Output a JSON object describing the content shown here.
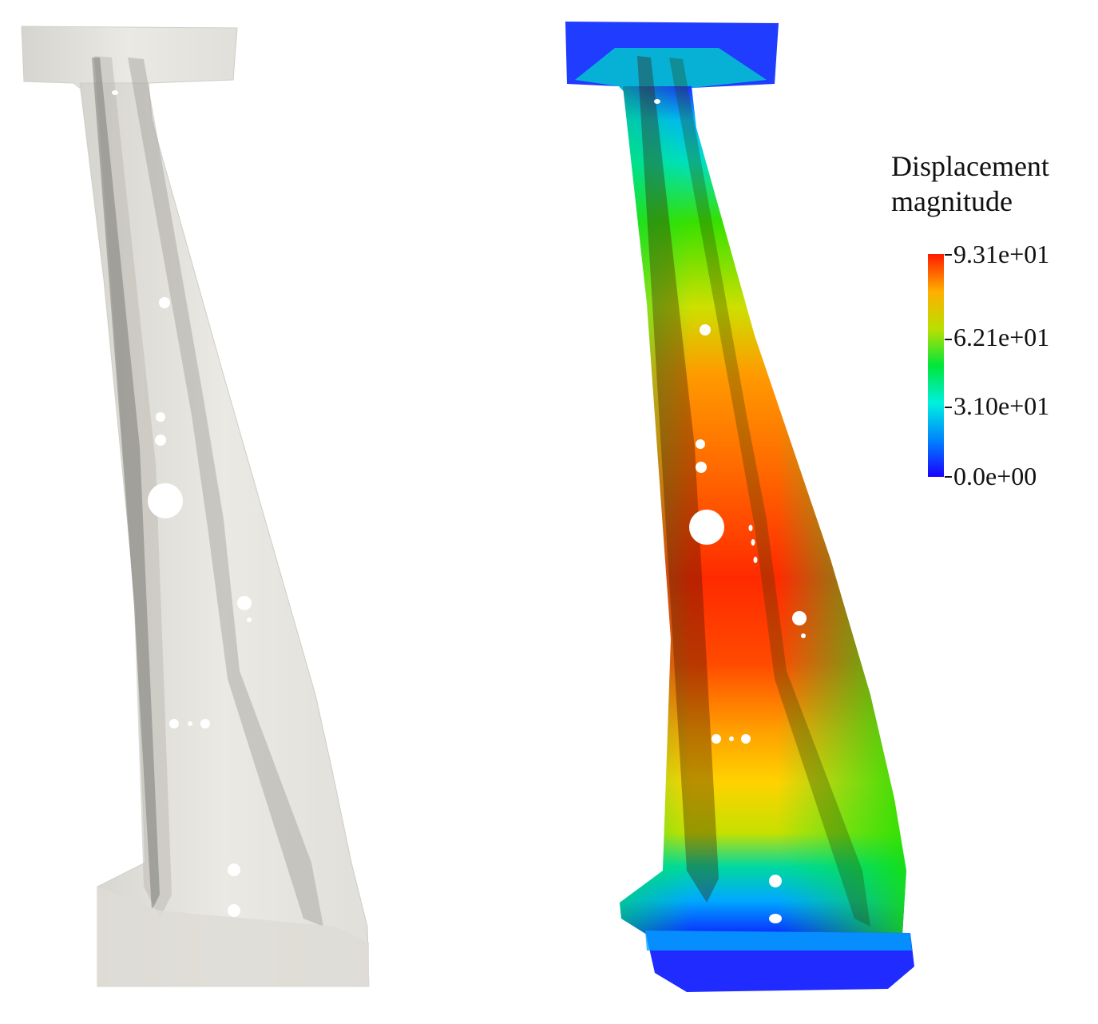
{
  "legend": {
    "title_line1": "Displacement",
    "title_line2": "magnitude",
    "ticks": [
      "9.31e+01",
      "6.21e+01",
      "3.10e+01",
      "0.0e+00"
    ],
    "range": [
      0,
      93.1
    ],
    "colormap": [
      "#1a00ff",
      "#00c8ff",
      "#00e676",
      "#8bd200",
      "#ffe000",
      "#ff8a00",
      "#ff1a00"
    ]
  },
  "views": {
    "left_color": "#e8e6e0",
    "left_shadow": "#9b9a95"
  }
}
